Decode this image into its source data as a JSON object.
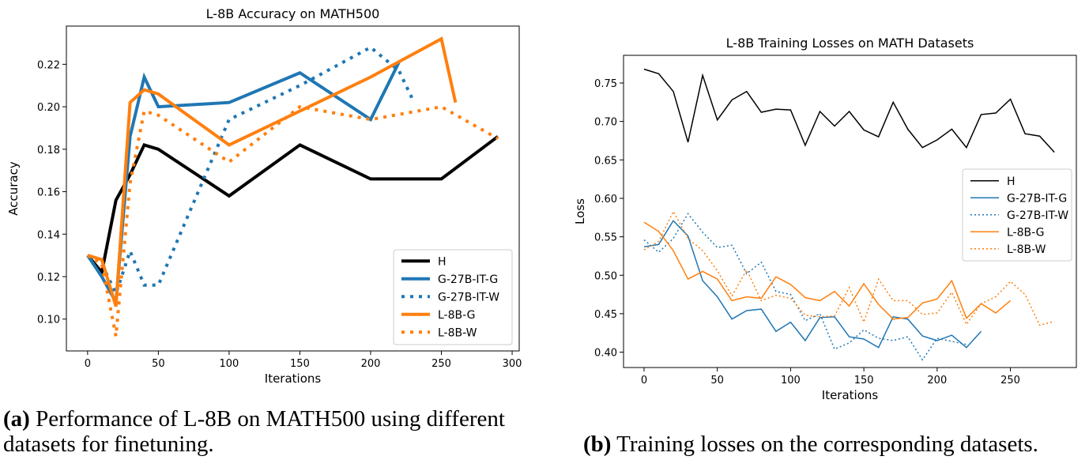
{
  "colors": {
    "H": "#000000",
    "G-27B-IT-G": "#1f77b4",
    "G-27B-IT-W": "#1f77b4",
    "L-8B-G": "#ff7f0e",
    "L-8B-W": "#ff7f0e"
  },
  "captions": {
    "a": {
      "label": "(a)",
      "text": " Performance of L-8B on MATH500 using different datasets for finetuning."
    },
    "b": {
      "label": "(b)",
      "text": " Training losses on the corresponding datasets."
    }
  },
  "chart_data": [
    {
      "type": "line",
      "title": "L-8B Accuracy on MATH500",
      "xlabel": "Iterations",
      "ylabel": "Accuracy",
      "xlim": [
        -15,
        305
      ],
      "ylim": [
        0.085,
        0.238
      ],
      "xticks": [
        0,
        50,
        100,
        150,
        200,
        250,
        300
      ],
      "yticks": [
        0.1,
        0.12,
        0.14,
        0.16,
        0.18,
        0.2,
        0.22
      ],
      "ytick_labels": [
        "0.10",
        "0.12",
        "0.14",
        "0.16",
        "0.18",
        "0.20",
        "0.22"
      ],
      "legend_position": "lower-right",
      "series": [
        {
          "name": "H",
          "style": "solid",
          "x": [
            0,
            10,
            20,
            30,
            40,
            50,
            100,
            150,
            200,
            250,
            290
          ],
          "values": [
            0.13,
            0.122,
            0.156,
            0.168,
            0.182,
            0.18,
            0.158,
            0.182,
            0.166,
            0.166,
            0.186
          ]
        },
        {
          "name": "G-27B-IT-G",
          "style": "solid",
          "x": [
            0,
            10,
            20,
            30,
            40,
            50,
            100,
            150,
            200,
            220
          ],
          "values": [
            0.13,
            0.12,
            0.108,
            0.186,
            0.214,
            0.2,
            0.202,
            0.216,
            0.194,
            0.221
          ]
        },
        {
          "name": "G-27B-IT-W",
          "style": "dotted",
          "x": [
            0,
            10,
            20,
            30,
            40,
            50,
            100,
            150,
            200,
            220,
            230
          ],
          "values": [
            0.13,
            0.126,
            0.112,
            0.132,
            0.116,
            0.116,
            0.194,
            0.21,
            0.228,
            0.217,
            0.203
          ]
        },
        {
          "name": "L-8B-G",
          "style": "solid",
          "x": [
            0,
            10,
            20,
            30,
            40,
            50,
            100,
            150,
            200,
            250,
            260
          ],
          "values": [
            0.13,
            0.128,
            0.106,
            0.202,
            0.208,
            0.206,
            0.182,
            0.198,
            0.214,
            0.232,
            0.202
          ]
        },
        {
          "name": "L-8B-W",
          "style": "dotted",
          "x": [
            0,
            10,
            20,
            30,
            40,
            50,
            100,
            150,
            200,
            250,
            290
          ],
          "values": [
            0.13,
            0.126,
            0.092,
            0.164,
            0.198,
            0.196,
            0.174,
            0.2,
            0.194,
            0.2,
            0.185
          ]
        }
      ]
    },
    {
      "type": "line",
      "title": "L-8B Training Losses on MATH Datasets",
      "xlabel": "Iterations",
      "ylabel": "Loss",
      "xlim": [
        -14,
        295
      ],
      "ylim": [
        0.38,
        0.786
      ],
      "xticks": [
        0,
        50,
        100,
        150,
        200,
        250
      ],
      "yticks": [
        0.4,
        0.45,
        0.5,
        0.55,
        0.6,
        0.65,
        0.7,
        0.75
      ],
      "ytick_labels": [
        "0.40",
        "0.45",
        "0.50",
        "0.55",
        "0.60",
        "0.65",
        "0.70",
        "0.75"
      ],
      "legend_position": "center-right",
      "series": [
        {
          "name": "H",
          "style": "solid",
          "x": [
            0,
            10,
            20,
            30,
            40,
            50,
            60,
            70,
            80,
            90,
            100,
            110,
            120,
            130,
            140,
            150,
            160,
            170,
            180,
            190,
            200,
            210,
            220,
            230,
            240,
            250,
            260,
            270,
            280
          ],
          "values": [
            0.768,
            0.762,
            0.739,
            0.673,
            0.76,
            0.702,
            0.728,
            0.739,
            0.712,
            0.716,
            0.715,
            0.669,
            0.713,
            0.694,
            0.713,
            0.689,
            0.68,
            0.725,
            0.69,
            0.666,
            0.676,
            0.69,
            0.666,
            0.709,
            0.711,
            0.729,
            0.684,
            0.681,
            0.66
          ]
        },
        {
          "name": "G-27B-IT-G",
          "style": "solid",
          "x": [
            0,
            10,
            20,
            30,
            40,
            50,
            60,
            70,
            80,
            90,
            100,
            110,
            120,
            130,
            140,
            150,
            160,
            170,
            180,
            190,
            200,
            210,
            220,
            230
          ],
          "values": [
            0.537,
            0.54,
            0.571,
            0.551,
            0.493,
            0.472,
            0.443,
            0.454,
            0.456,
            0.427,
            0.439,
            0.415,
            0.445,
            0.446,
            0.42,
            0.417,
            0.406,
            0.446,
            0.443,
            0.421,
            0.415,
            0.422,
            0.406,
            0.427
          ]
        },
        {
          "name": "G-27B-IT-W",
          "style": "dotted",
          "x": [
            0,
            10,
            20,
            30,
            40,
            50,
            60,
            70,
            80,
            90,
            100,
            110,
            120,
            130,
            140,
            150,
            160,
            170,
            180,
            190,
            200,
            210,
            220
          ],
          "values": [
            0.546,
            0.53,
            0.548,
            0.58,
            0.556,
            0.536,
            0.539,
            0.502,
            0.517,
            0.479,
            0.475,
            0.441,
            0.45,
            0.404,
            0.412,
            0.429,
            0.418,
            0.415,
            0.42,
            0.39,
            0.418,
            0.414,
            0.41
          ]
        },
        {
          "name": "L-8B-G",
          "style": "solid",
          "x": [
            0,
            10,
            20,
            30,
            40,
            50,
            60,
            70,
            80,
            90,
            100,
            110,
            120,
            130,
            140,
            150,
            160,
            170,
            180,
            190,
            200,
            210,
            220,
            230,
            240,
            250
          ],
          "values": [
            0.569,
            0.557,
            0.532,
            0.495,
            0.505,
            0.495,
            0.467,
            0.472,
            0.47,
            0.498,
            0.488,
            0.471,
            0.467,
            0.479,
            0.46,
            0.489,
            0.462,
            0.443,
            0.445,
            0.464,
            0.469,
            0.493,
            0.444,
            0.463,
            0.451,
            0.467
          ]
        },
        {
          "name": "L-8B-W",
          "style": "dotted",
          "x": [
            0,
            10,
            20,
            30,
            40,
            50,
            60,
            70,
            80,
            90,
            100,
            110,
            120,
            130,
            140,
            150,
            160,
            170,
            180,
            190,
            200,
            210,
            220,
            230,
            240,
            250,
            260,
            270,
            280
          ],
          "values": [
            0.533,
            0.544,
            0.583,
            0.548,
            0.532,
            0.506,
            0.473,
            0.507,
            0.467,
            0.474,
            0.47,
            0.448,
            0.446,
            0.447,
            0.484,
            0.439,
            0.495,
            0.467,
            0.467,
            0.449,
            0.451,
            0.478,
            0.436,
            0.463,
            0.472,
            0.492,
            0.475,
            0.435,
            0.44
          ]
        }
      ]
    }
  ]
}
